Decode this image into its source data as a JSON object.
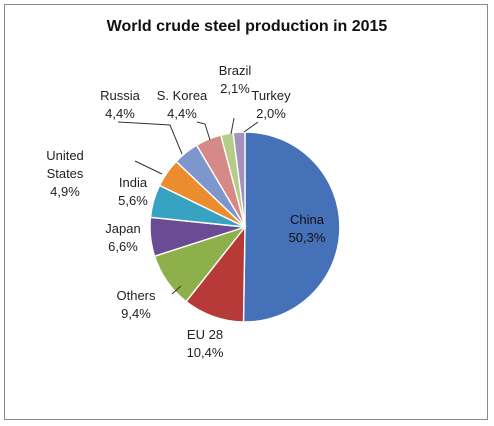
{
  "chart_data": {
    "type": "pie",
    "title": "World crude steel production in 2015",
    "start_angle_deg": 0,
    "direction": "clockwise",
    "slices": [
      {
        "label_lines": [
          "China",
          "50,3%"
        ],
        "value": 50.3,
        "value_label": "50,3%",
        "color": "#4571B8"
      },
      {
        "label_lines": [
          "EU 28",
          "10,4%"
        ],
        "value": 10.4,
        "value_label": "10,4%",
        "color": "#B73A39"
      },
      {
        "label_lines": [
          "Others",
          "9,4%"
        ],
        "value": 9.4,
        "value_label": "9,4%",
        "color": "#8DB04A"
      },
      {
        "label_lines": [
          "Japan",
          "6,6%"
        ],
        "value": 6.6,
        "value_label": "6,6%",
        "color": "#6B4C94"
      },
      {
        "label_lines": [
          "India",
          "5,6%"
        ],
        "value": 5.6,
        "value_label": "5,6%",
        "color": "#36A3C2"
      },
      {
        "label_lines": [
          "United",
          "States",
          "4,9%"
        ],
        "value": 4.9,
        "value_label": "4,9%",
        "color": "#EB8C2E"
      },
      {
        "label_lines": [
          "Russia",
          "4,4%"
        ],
        "value": 4.4,
        "value_label": "4,4%",
        "color": "#7D97CC"
      },
      {
        "label_lines": [
          "S. Korea",
          "4,4%"
        ],
        "value": 4.4,
        "value_label": "4,4%",
        "color": "#D58A88"
      },
      {
        "label_lines": [
          "Brazil",
          "2,1%"
        ],
        "value": 2.1,
        "value_label": "2,1%",
        "color": "#B5CC8A"
      },
      {
        "label_lines": [
          "Turkey",
          "2,0%"
        ],
        "value": 2.0,
        "value_label": "2,0%",
        "color": "#A292BC"
      }
    ]
  }
}
